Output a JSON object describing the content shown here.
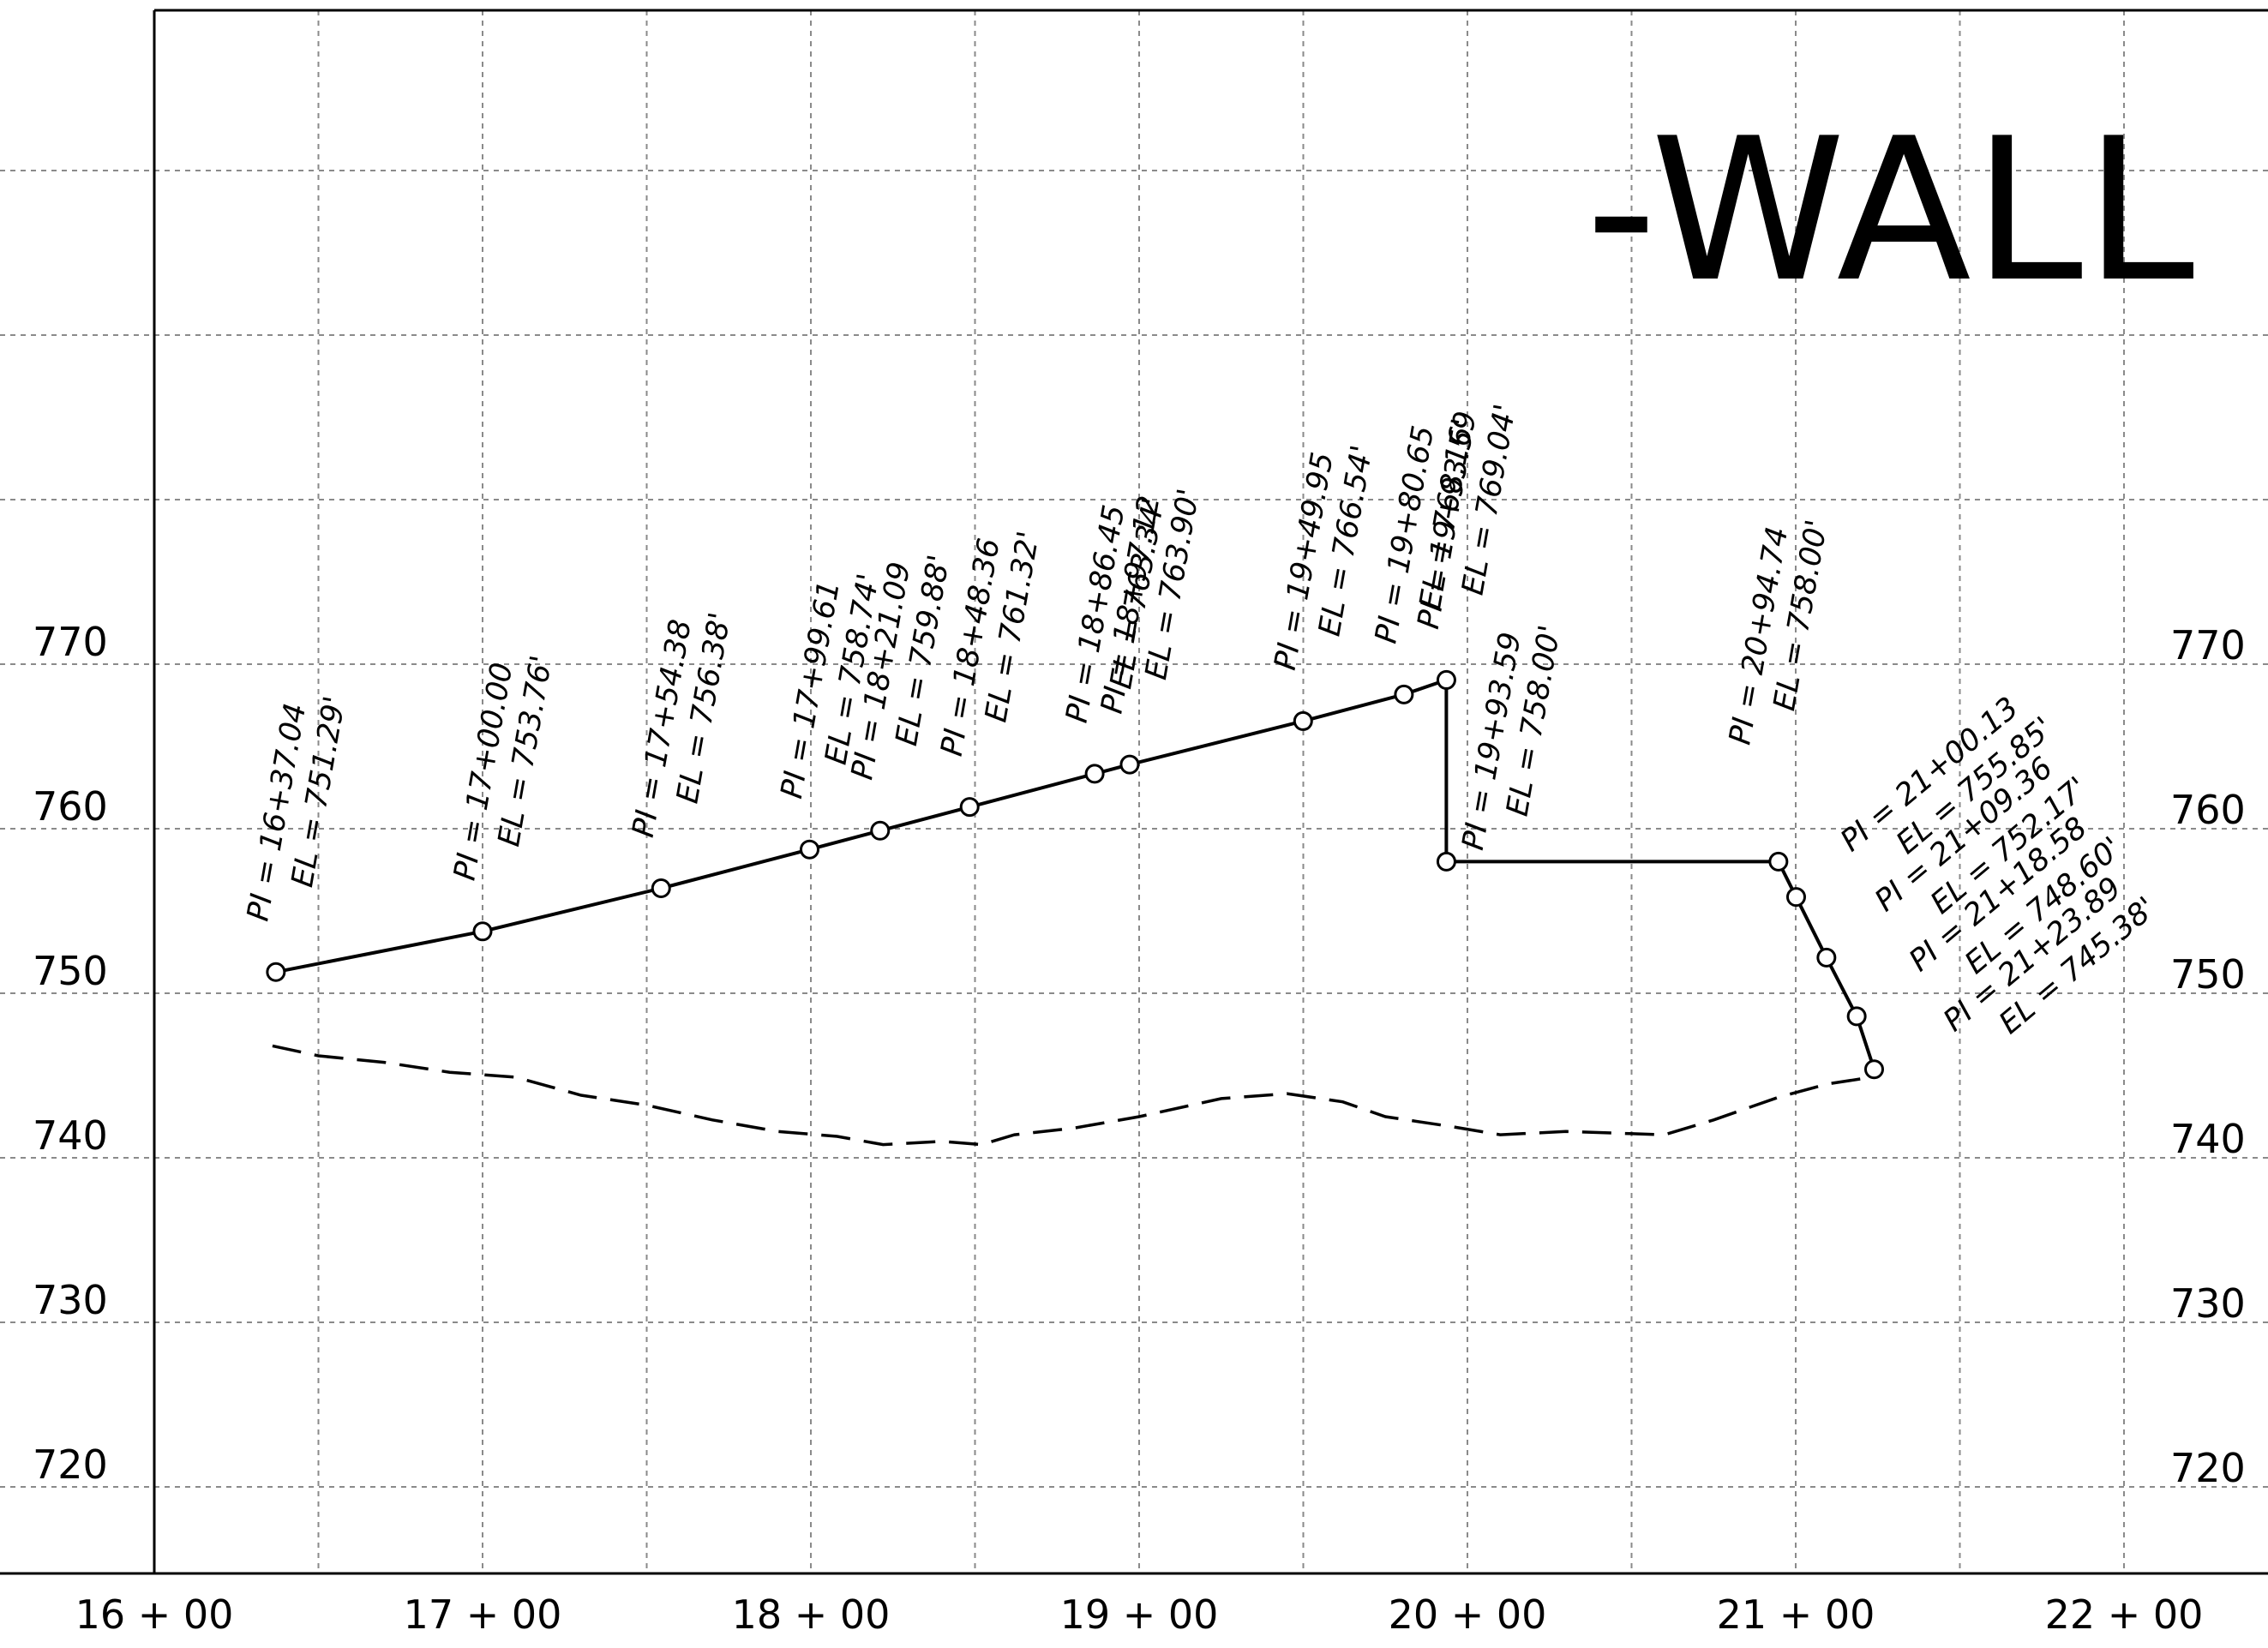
{
  "title": "-WALL",
  "x_axis": {
    "min_ft": 1600,
    "max_ft": 2200,
    "labels": [
      {
        "sta": 1600,
        "text": "16 + 00"
      },
      {
        "sta": 1700,
        "text": "17 + 00"
      },
      {
        "sta": 1800,
        "text": "18 + 00"
      },
      {
        "sta": 1900,
        "text": "19 + 00"
      },
      {
        "sta": 2000,
        "text": "20 + 00"
      },
      {
        "sta": 2100,
        "text": "21 + 00"
      },
      {
        "sta": 2200,
        "text": "22 + 00"
      }
    ]
  },
  "y_axis": {
    "min_el": 715,
    "max_el": 810,
    "labels": [
      {
        "el": 720,
        "text": "720"
      },
      {
        "el": 730,
        "text": "730"
      },
      {
        "el": 740,
        "text": "740"
      },
      {
        "el": 750,
        "text": "750"
      },
      {
        "el": 760,
        "text": "760"
      },
      {
        "el": 770,
        "text": "770"
      }
    ]
  },
  "profile_points": [
    {
      "sta": 1637.04,
      "el": 751.29
    },
    {
      "sta": 1700.0,
      "el": 753.76
    },
    {
      "sta": 1754.38,
      "el": 756.38
    },
    {
      "sta": 1799.61,
      "el": 758.74
    },
    {
      "sta": 1821.09,
      "el": 759.88
    },
    {
      "sta": 1848.36,
      "el": 761.32
    },
    {
      "sta": 1886.45,
      "el": 763.34
    },
    {
      "sta": 1897.12,
      "el": 763.9
    },
    {
      "sta": 1949.95,
      "el": 766.54
    },
    {
      "sta": 1980.65,
      "el": 768.16
    },
    {
      "sta": 1993.59,
      "el": 769.04
    },
    {
      "sta": 1993.59,
      "el": 758.0
    },
    {
      "sta": 2094.74,
      "el": 758.0
    },
    {
      "sta": 2100.13,
      "el": 755.85
    },
    {
      "sta": 2109.36,
      "el": 752.17
    },
    {
      "sta": 2118.58,
      "el": 748.6
    },
    {
      "sta": 2123.89,
      "el": 745.38
    }
  ],
  "ground_points": [
    {
      "sta": 1636,
      "el": 746.8
    },
    {
      "sta": 1650,
      "el": 746.2
    },
    {
      "sta": 1670,
      "el": 745.8
    },
    {
      "sta": 1690,
      "el": 745.2
    },
    {
      "sta": 1710,
      "el": 744.9
    },
    {
      "sta": 1730,
      "el": 743.8
    },
    {
      "sta": 1750,
      "el": 743.2
    },
    {
      "sta": 1770,
      "el": 742.3
    },
    {
      "sta": 1790,
      "el": 741.6
    },
    {
      "sta": 1808,
      "el": 741.3
    },
    {
      "sta": 1822,
      "el": 740.8
    },
    {
      "sta": 1840,
      "el": 741.0
    },
    {
      "sta": 1852,
      "el": 740.8
    },
    {
      "sta": 1862,
      "el": 741.4
    },
    {
      "sta": 1880,
      "el": 741.8
    },
    {
      "sta": 1900,
      "el": 742.5
    },
    {
      "sta": 1925,
      "el": 743.6
    },
    {
      "sta": 1945,
      "el": 743.9
    },
    {
      "sta": 1962,
      "el": 743.4
    },
    {
      "sta": 1975,
      "el": 742.5
    },
    {
      "sta": 1995,
      "el": 741.9
    },
    {
      "sta": 2010,
      "el": 741.4
    },
    {
      "sta": 2030,
      "el": 741.6
    },
    {
      "sta": 2060,
      "el": 741.4
    },
    {
      "sta": 2075,
      "el": 742.3
    },
    {
      "sta": 2095,
      "el": 743.7
    },
    {
      "sta": 2110,
      "el": 744.5
    },
    {
      "sta": 2120,
      "el": 744.8
    }
  ],
  "annotations": [
    {
      "pi": "PI =  16+37.04",
      "el": "EL  =  751.29'",
      "sta": 1637.04,
      "elev": 751.29,
      "angle": -80
    },
    {
      "pi": "PI =  17+00.00",
      "el": "EL  =  753.76'",
      "sta": 1700.0,
      "elev": 753.76,
      "angle": -80
    },
    {
      "pi": "PI =  17+54.38",
      "el": "EL  =  756.38'",
      "sta": 1754.38,
      "elev": 756.38,
      "angle": -80
    },
    {
      "pi": "PI =  17+99.61",
      "el": "EL  =  758.74'",
      "sta": 1799.61,
      "elev": 758.74,
      "angle": -80
    },
    {
      "pi": "PI =  18+21.09",
      "el": "EL  =  759.88'",
      "sta": 1821.09,
      "elev": 759.88,
      "angle": -80
    },
    {
      "pi": "PI =  18+48.36",
      "el": "EL  =  761.32'",
      "sta": 1848.36,
      "elev": 761.32,
      "angle": -80
    },
    {
      "pi": "PI =  18+86.45",
      "el": "EL  =  763.34'",
      "sta": 1886.45,
      "elev": 763.34,
      "angle": -80
    },
    {
      "pi": "PI =  18+97.12",
      "el": "EL  =  763.90'",
      "sta": 1897.12,
      "elev": 763.9,
      "angle": -80
    },
    {
      "pi": "PI =  19+49.95",
      "el": "EL  =  766.54'",
      "sta": 1949.95,
      "elev": 766.54,
      "angle": -80
    },
    {
      "pi": "PI =  19+80.65",
      "el": "EL  =  768.16'",
      "sta": 1980.65,
      "elev": 768.16,
      "angle": -80
    },
    {
      "pi": "PI =  19+93.59",
      "el": "EL  =  769.04'",
      "sta": 1993.59,
      "elev": 769.04,
      "angle": -80
    },
    {
      "pi": "PI =  19+93.59",
      "el": "EL  =  758.00'",
      "sta": 1993.59,
      "elev": 758.0,
      "angle": -80
    },
    {
      "pi": "PI =  20+94.74",
      "el": "EL  =  758.00'",
      "sta": 2094.74,
      "elev": 758.0,
      "angle": -80
    },
    {
      "pi": "PI =  21+00.13",
      "el": "EL  =  755.85'",
      "sta": 2100.13,
      "elev": 755.85,
      "angle": -40
    },
    {
      "pi": "PI =  21+09.36",
      "el": "EL  =  752.17'",
      "sta": 2109.36,
      "elev": 752.17,
      "angle": -40
    },
    {
      "pi": "PI =  21+18.58",
      "el": "EL  =  748.60'",
      "sta": 2118.58,
      "elev": 748.6,
      "angle": -40
    },
    {
      "pi": "PI =  21+23.89",
      "el": "EL  =  745.38'",
      "sta": 2123.89,
      "elev": 745.38,
      "angle": -40
    }
  ]
}
